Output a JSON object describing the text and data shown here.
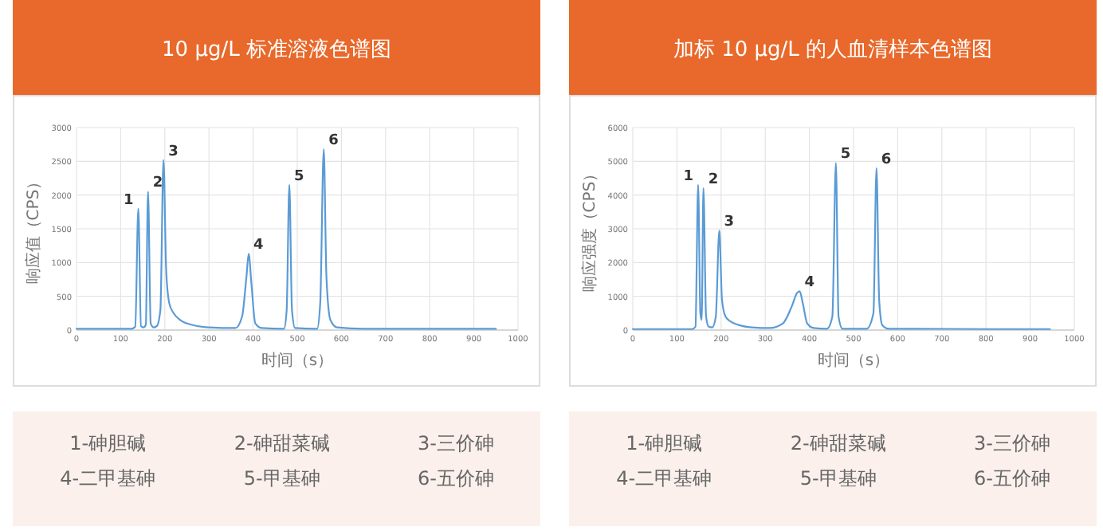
{
  "chart_data": [
    {
      "type": "line",
      "title": "10 μg/L 标准溶液色谱图",
      "xlabel": "时间（s）",
      "ylabel": "响应值（CPS）",
      "xlim": [
        0,
        1000
      ],
      "xticks": [
        0,
        100,
        200,
        300,
        400,
        500,
        600,
        700,
        800,
        900,
        1000
      ],
      "ylim": [
        0,
        3000
      ],
      "yticks": [
        0,
        500,
        1000,
        1500,
        2000,
        2500,
        3000
      ],
      "grid": true,
      "series": [
        {
          "color": "#5b9bd5",
          "x": [
            0,
            60,
            125,
            133,
            140,
            146,
            152,
            157,
            162,
            168,
            175,
            182,
            190,
            197,
            203,
            210,
            220,
            235,
            260,
            300,
            360,
            375,
            385,
            390,
            396,
            405,
            420,
            470,
            476,
            482,
            488,
            495,
            545,
            552,
            560,
            566,
            575,
            590,
            650,
            800,
            950
          ],
          "values": [
            20,
            20,
            20,
            50,
            1800,
            60,
            40,
            80,
            2050,
            100,
            40,
            60,
            300,
            2520,
            900,
            400,
            250,
            150,
            80,
            40,
            30,
            200,
            800,
            1130,
            700,
            100,
            30,
            20,
            300,
            2150,
            300,
            30,
            20,
            400,
            2680,
            800,
            150,
            40,
            20,
            20,
            20
          ]
        }
      ],
      "annotations": [
        {
          "text": "1",
          "x": 140,
          "y": 1800
        },
        {
          "text": "2",
          "x": 162,
          "y": 2050
        },
        {
          "text": "3",
          "x": 197,
          "y": 2520
        },
        {
          "text": "4",
          "x": 390,
          "y": 1130
        },
        {
          "text": "5",
          "x": 482,
          "y": 2150
        },
        {
          "text": "6",
          "x": 560,
          "y": 2680
        },
        "1-砷胆碱",
        "2-砷甜菜碱",
        "3-三价砷",
        "4-二甲基砷",
        "5-甲基砷",
        "6-五价砷"
      ]
    },
    {
      "type": "line",
      "title": "加标 10 μg/L 的人血清样本色谱图",
      "xlabel": "时间（s）",
      "ylabel": "响应强度（CPS）",
      "xlim": [
        0,
        1000
      ],
      "xticks": [
        0,
        100,
        200,
        300,
        400,
        500,
        600,
        700,
        800,
        900,
        1000
      ],
      "ylim": [
        0,
        6000
      ],
      "yticks": [
        0,
        1000,
        2000,
        3000,
        4000,
        5000,
        6000
      ],
      "grid": true,
      "series": [
        {
          "color": "#5b9bd5",
          "x": [
            0,
            60,
            135,
            142,
            148,
            153,
            156,
            160,
            166,
            172,
            180,
            188,
            196,
            202,
            210,
            222,
            240,
            270,
            310,
            340,
            360,
            372,
            378,
            385,
            395,
            410,
            440,
            452,
            460,
            466,
            475,
            530,
            545,
            552,
            558,
            565,
            580,
            640,
            800,
            945
          ],
          "values": [
            30,
            30,
            30,
            100,
            4300,
            500,
            300,
            4200,
            400,
            100,
            80,
            400,
            2950,
            900,
            400,
            250,
            150,
            80,
            60,
            200,
            700,
            1100,
            1150,
            800,
            200,
            60,
            40,
            400,
            4950,
            400,
            40,
            40,
            500,
            4800,
            900,
            150,
            40,
            40,
            30,
            30
          ]
        }
      ],
      "annotations": [
        {
          "text": "1",
          "x": 148,
          "y": 4300
        },
        {
          "text": "2",
          "x": 160,
          "y": 4200
        },
        {
          "text": "3",
          "x": 196,
          "y": 2950
        },
        {
          "text": "4",
          "x": 378,
          "y": 1150
        },
        {
          "text": "5",
          "x": 460,
          "y": 4950
        },
        {
          "text": "6",
          "x": 552,
          "y": 4800
        },
        "1-砷胆碱",
        "2-砷甜菜碱",
        "3-三价砷",
        "4-二甲基砷",
        "5-甲基砷",
        "6-五价砷"
      ]
    }
  ]
}
